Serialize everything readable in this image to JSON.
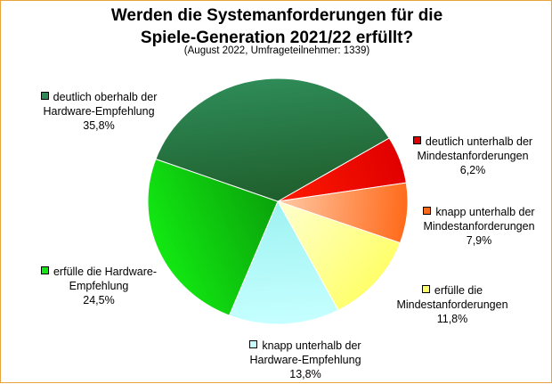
{
  "chart_data": {
    "type": "pie",
    "title": "Werden die Systemanforderungen für die Spiele-Generation 2021/22 erfüllt?",
    "title_lines": [
      "Werden die Systemanforderungen für die",
      "Spiele-Generation 2021/22 erfüllt?"
    ],
    "subtitle": "(August 2022, Umfrageteilnehmer: 1339)",
    "slices": [
      {
        "label_lines": [
          "deutlich unterhalb der",
          "Mindestanforderungen"
        ],
        "value": 6.2,
        "value_label": "6,2%",
        "color": "#e00000",
        "color2": "#ff1a00"
      },
      {
        "label_lines": [
          "knapp unterhalb der",
          "Mindestanforderungen"
        ],
        "value": 7.9,
        "value_label": "7,9%",
        "color": "#ff6a1a",
        "color2": "#ffc9a6"
      },
      {
        "label_lines": [
          "erfülle die",
          "Mindestanforderungen"
        ],
        "value": 11.8,
        "value_label": "11,8%",
        "color": "#ffff6a",
        "color2": "#ffffd0"
      },
      {
        "label_lines": [
          "knapp unterhalb der",
          "Hardware-Empfehlung"
        ],
        "value": 13.8,
        "value_label": "13,8%",
        "color": "#c6ffff",
        "color2": "#9ef2f2"
      },
      {
        "label_lines": [
          "erfülle die Hardware-",
          "Empfehlung"
        ],
        "value": 24.5,
        "value_label": "24,5%",
        "color": "#12e812",
        "color2": "#0aa20a"
      },
      {
        "label_lines": [
          "deutlich oberhalb der",
          "Hardware-Empfehlung"
        ],
        "value": 35.8,
        "value_label": "35,8%",
        "color": "#2e8b57",
        "color2": "#1f5e2c"
      }
    ]
  }
}
